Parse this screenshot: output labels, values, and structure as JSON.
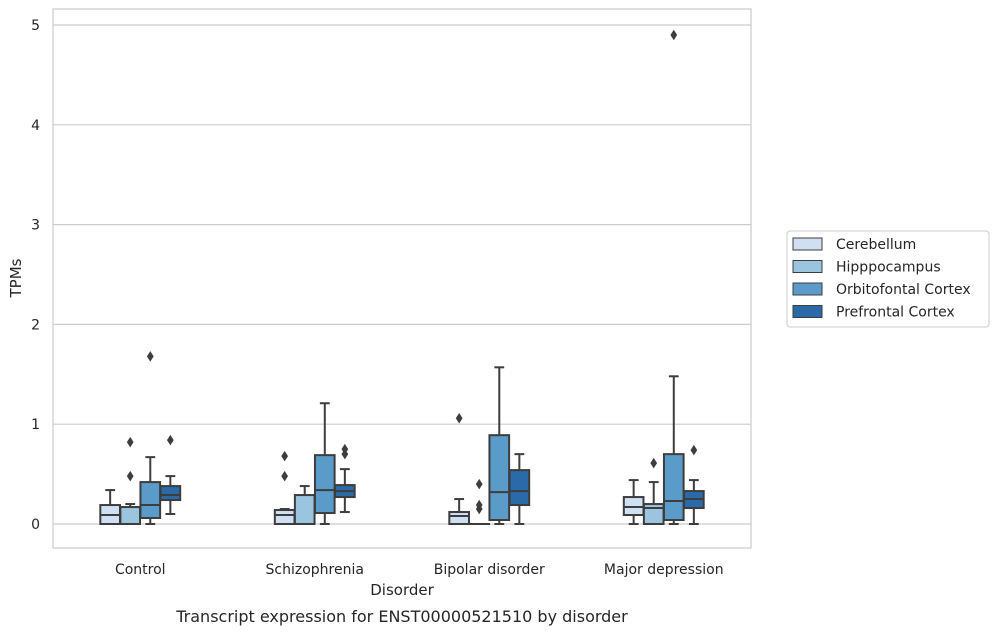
{
  "caption": "Transcript expression for ENST00000521510 by disorder",
  "chart_data": {
    "type": "box",
    "xlabel": "Disorder",
    "ylabel": "TPMs",
    "ylim": [
      -0.24,
      5.17
    ],
    "yticks": [
      0,
      1,
      2,
      3,
      4,
      5
    ],
    "grid": "horizontal",
    "legend_position": "right",
    "categories": [
      "Control",
      "Schizophrenia",
      "Bipolar disorder",
      "Major depression"
    ],
    "series": [
      {
        "name": "Cerebellum",
        "color": "#d0e0f2",
        "boxes": [
          {
            "whislo": 0,
            "q1": 0,
            "med": 0.09,
            "q3": 0.19,
            "whishi": 0.34,
            "fliers": []
          },
          {
            "whislo": 0,
            "q1": 0,
            "med": 0.09,
            "q3": 0.14,
            "whishi": 0.15,
            "fliers": [
              0.48,
              0.68
            ]
          },
          {
            "whislo": 0,
            "q1": 0,
            "med": 0.08,
            "q3": 0.12,
            "whishi": 0.25,
            "fliers": [
              1.06
            ]
          },
          {
            "whislo": 0,
            "q1": 0.09,
            "med": 0.17,
            "q3": 0.27,
            "whishi": 0.44,
            "fliers": []
          }
        ]
      },
      {
        "name": "Hipppocampus",
        "color": "#9bc4de",
        "boxes": [
          {
            "whislo": 0,
            "q1": 0,
            "med": 0,
            "q3": 0.17,
            "whishi": 0.2,
            "fliers": [
              0.48,
              0.82
            ]
          },
          {
            "whislo": 0,
            "q1": 0,
            "med": 0,
            "q3": 0.29,
            "whishi": 0.38,
            "fliers": []
          },
          {
            "whislo": 0,
            "q1": 0,
            "med": 0,
            "q3": 0,
            "whishi": 0,
            "fliers": [
              0.15,
              0.19,
              0.4
            ]
          },
          {
            "whislo": 0,
            "q1": 0,
            "med": 0.16,
            "q3": 0.2,
            "whishi": 0.42,
            "fliers": [
              0.61
            ]
          }
        ]
      },
      {
        "name": "Orbitofontal Cortex",
        "color": "#5a9bc9",
        "boxes": [
          {
            "whislo": 0,
            "q1": 0.06,
            "med": 0.19,
            "q3": 0.42,
            "whishi": 0.67,
            "fliers": [
              1.68
            ]
          },
          {
            "whislo": 0,
            "q1": 0.11,
            "med": 0.34,
            "q3": 0.69,
            "whishi": 1.21,
            "fliers": []
          },
          {
            "whislo": 0,
            "q1": 0.04,
            "med": 0.32,
            "q3": 0.89,
            "whishi": 1.57,
            "fliers": []
          },
          {
            "whislo": 0,
            "q1": 0.04,
            "med": 0.23,
            "q3": 0.7,
            "whishi": 1.48,
            "fliers": [
              4.9
            ]
          }
        ]
      },
      {
        "name": "Prefrontal Cortex",
        "color": "#2b6aa8",
        "boxes": [
          {
            "whislo": 0.1,
            "q1": 0.24,
            "med": 0.29,
            "q3": 0.38,
            "whishi": 0.48,
            "fliers": [
              0.84
            ]
          },
          {
            "whislo": 0.12,
            "q1": 0.27,
            "med": 0.33,
            "q3": 0.39,
            "whishi": 0.55,
            "fliers": [
              0.7,
              0.75
            ]
          },
          {
            "whislo": 0,
            "q1": 0.19,
            "med": 0.33,
            "q3": 0.54,
            "whishi": 0.7,
            "fliers": []
          },
          {
            "whislo": 0,
            "q1": 0.16,
            "med": 0.25,
            "q3": 0.33,
            "whishi": 0.44,
            "fliers": [
              0.74
            ]
          }
        ]
      }
    ]
  }
}
